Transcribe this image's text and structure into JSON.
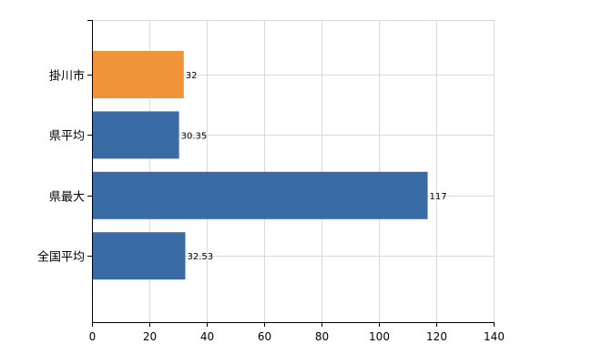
{
  "chart_data": {
    "type": "bar",
    "orientation": "horizontal",
    "categories": [
      "掛川市",
      "県平均",
      "県最大",
      "全国平均"
    ],
    "values": [
      32,
      30.35,
      117,
      32.53
    ],
    "data_labels": [
      "32",
      "30.35",
      "117",
      "32.53"
    ],
    "highlight_index": 0,
    "colors": {
      "default": "#3a6ba5",
      "highlight": "#f0943a",
      "grid": "#d9d9d9",
      "axis": "#000000"
    },
    "xlim": [
      0,
      140
    ],
    "xticks": [
      0,
      20,
      40,
      60,
      80,
      100,
      120,
      140
    ],
    "xtick_labels": [
      "0",
      "20",
      "40",
      "60",
      "80",
      "100",
      "120",
      "140"
    ],
    "grid": true,
    "title": "",
    "xlabel": "",
    "ylabel": ""
  }
}
